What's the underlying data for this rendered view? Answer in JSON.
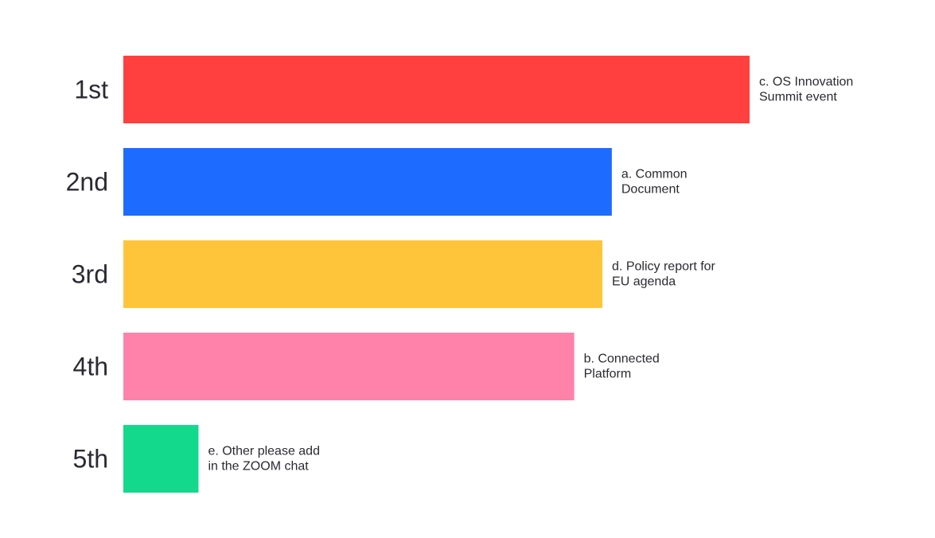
{
  "chart_data": {
    "type": "bar",
    "orientation": "horizontal",
    "title": "",
    "xlabel": "",
    "ylabel": "",
    "grid": false,
    "categories": [
      "1st",
      "2nd",
      "3rd",
      "4th",
      "5th"
    ],
    "values": [
      100,
      78,
      76.5,
      72,
      12
    ],
    "xlim": [
      0,
      100
    ],
    "bar_labels": [
      [
        "c. OS Innovation",
        "Summit event"
      ],
      [
        "a. Common",
        "Document"
      ],
      [
        "d. Policy report for",
        "EU agenda"
      ],
      [
        "b. Connected",
        "Platform"
      ],
      [
        "e. Other please add",
        "in the ZOOM chat"
      ]
    ],
    "colors": [
      "#ff403e",
      "#1e6cff",
      "#ffc53a",
      "#ff82aa",
      "#13d98d"
    ]
  }
}
